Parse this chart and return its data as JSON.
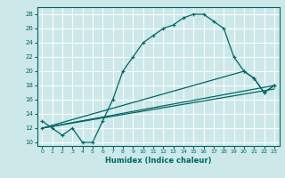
{
  "xlabel": "Humidex (Indice chaleur)",
  "ylabel": "",
  "bg_color": "#cce8e8",
  "grid_color": "#ffffff",
  "line_color": "#006666",
  "xlim": [
    -0.5,
    23.5
  ],
  "ylim": [
    9.5,
    29
  ],
  "xticks": [
    0,
    1,
    2,
    3,
    4,
    5,
    6,
    7,
    8,
    9,
    10,
    11,
    12,
    13,
    14,
    15,
    16,
    17,
    18,
    19,
    20,
    21,
    22,
    23
  ],
  "yticks": [
    10,
    12,
    14,
    16,
    18,
    20,
    22,
    24,
    26,
    28
  ],
  "curve1_x": [
    0,
    1,
    2,
    3,
    4,
    5,
    6,
    7,
    8,
    9,
    10,
    11,
    12,
    13,
    14,
    15,
    16,
    17,
    18,
    19,
    20,
    21,
    22,
    23
  ],
  "curve1_y": [
    13,
    12,
    11,
    12,
    10,
    10,
    13,
    16,
    20,
    22,
    24,
    25,
    26,
    26.5,
    27.5,
    28,
    28,
    27,
    26,
    22,
    20,
    19,
    17,
    18
  ],
  "curve2_x": [
    0,
    20,
    21,
    22,
    23
  ],
  "curve2_y": [
    12,
    20,
    19,
    17,
    18
  ],
  "curve3_x": [
    0,
    23
  ],
  "curve3_y": [
    12,
    18
  ],
  "curve4_x": [
    0,
    23
  ],
  "curve4_y": [
    12,
    17.5
  ]
}
